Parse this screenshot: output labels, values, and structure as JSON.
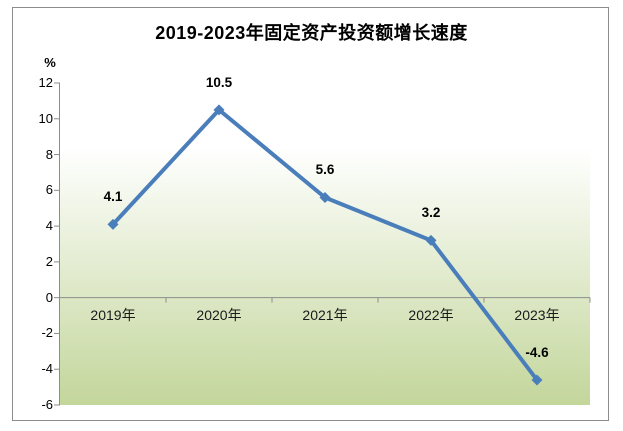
{
  "chart_data": {
    "type": "line",
    "title": "2019-2023年固定资产投资额增长速度",
    "ylabel": "%",
    "xlabel": "",
    "categories": [
      "2019年",
      "2020年",
      "2021年",
      "2022年",
      "2023年"
    ],
    "series": [
      {
        "values": [
          4.1,
          10.5,
          5.6,
          3.2,
          -4.6
        ],
        "labels": [
          "4.1",
          "10.5",
          "5.6",
          "3.2",
          "-4.6"
        ]
      }
    ],
    "ylim": [
      -6,
      12
    ],
    "yticks": [
      12,
      10,
      8,
      6,
      4,
      2,
      0,
      -2,
      -4,
      -6
    ],
    "grid": false,
    "legend": false,
    "marker": "diamond",
    "data_label_position": "above",
    "colors": {
      "line": "#4A7EBB",
      "marker": "#4A7EBB",
      "plot_gradient_top": "#FFFFFF",
      "plot_gradient_bottom": "#C3D69B",
      "axis": "#8C8C8C",
      "text": "#000000",
      "frame_border": "#8C8C8C",
      "background": "#FFFFFF"
    }
  }
}
